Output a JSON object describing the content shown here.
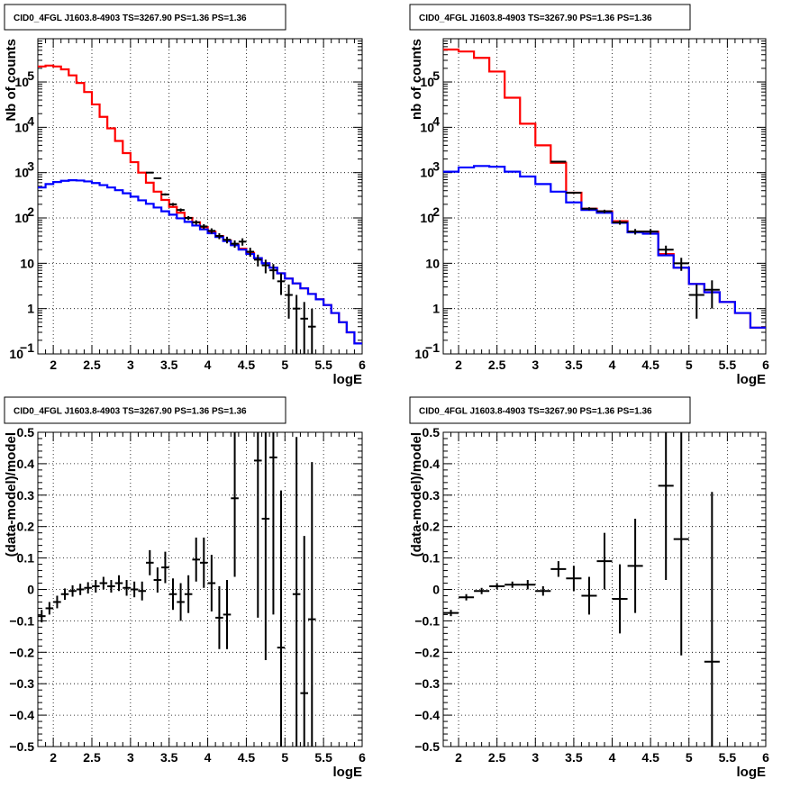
{
  "chart_data": [
    {
      "type": "line",
      "title": "CID0_4FGL J1603.8-4903 TS=3267.90 PS=1.36 PS=1.36",
      "xlabel": "logE",
      "ylabel": "Nb of counts",
      "xlim": [
        1.8,
        6.0
      ],
      "ylim": [
        0.1,
        900000
      ],
      "yscale": "log",
      "grid": true,
      "xticks": [
        "2",
        "2.5",
        "3",
        "3.5",
        "4",
        "4.5",
        "5",
        "5.5",
        "6"
      ],
      "yticks": [
        {
          "v": 0.1,
          "label": "10",
          "sup": "−1"
        },
        {
          "v": 1,
          "label": "1",
          "sup": ""
        },
        {
          "v": 10,
          "label": "10",
          "sup": ""
        },
        {
          "v": 100,
          "label": "10",
          "sup": "2"
        },
        {
          "v": 1000,
          "label": "10",
          "sup": "3"
        },
        {
          "v": 10000,
          "label": "10",
          "sup": "4"
        },
        {
          "v": 100000,
          "label": "10",
          "sup": "5"
        }
      ],
      "series": [
        {
          "color": "#ff0000",
          "kind": "hist",
          "binwidth": 0.1,
          "x": [
            1.8,
            1.9,
            2.0,
            2.1,
            2.2,
            2.3,
            2.4,
            2.5,
            2.6,
            2.7,
            2.8,
            2.9,
            3.0,
            3.1,
            3.2,
            3.3,
            3.4,
            3.5,
            3.6,
            3.7,
            3.8,
            3.9,
            4.0,
            4.1,
            4.2,
            4.3,
            4.4,
            4.5,
            4.6,
            4.7,
            4.8,
            4.9,
            5.0,
            5.1,
            5.2,
            5.3,
            5.4,
            5.5,
            5.6,
            5.7,
            5.8,
            5.9
          ],
          "y": [
            220000,
            230000,
            220000,
            190000,
            140000,
            95000,
            60000,
            32000,
            17000,
            9500,
            5000,
            2700,
            1700,
            1000,
            600,
            380,
            250,
            175,
            130,
            100,
            80,
            63,
            50,
            40,
            32,
            26,
            21,
            17,
            13,
            10,
            8,
            6,
            4.6,
            3.6,
            2.8,
            2.1,
            1.6,
            1.2,
            0.8,
            0.5,
            0.3,
            0.17
          ]
        },
        {
          "color": "#0000ff",
          "kind": "hist",
          "binwidth": 0.1,
          "x": [
            1.8,
            1.9,
            2.0,
            2.1,
            2.2,
            2.3,
            2.4,
            2.5,
            2.6,
            2.7,
            2.8,
            2.9,
            3.0,
            3.1,
            3.2,
            3.3,
            3.4,
            3.5,
            3.6,
            3.7,
            3.8,
            3.9,
            4.0,
            4.1,
            4.2,
            4.3,
            4.4,
            4.5,
            4.6,
            4.7,
            4.8,
            4.9,
            5.0,
            5.1,
            5.2,
            5.3,
            5.4,
            5.5,
            5.6,
            5.7,
            5.8,
            5.9
          ],
          "y": [
            470,
            560,
            620,
            660,
            680,
            670,
            640,
            590,
            530,
            470,
            410,
            350,
            295,
            245,
            205,
            170,
            140,
            118,
            98,
            82,
            68,
            56,
            46,
            38,
            31,
            25,
            20,
            16,
            13,
            10,
            8,
            6,
            4.6,
            3.6,
            2.8,
            2.1,
            1.6,
            1.2,
            0.8,
            0.5,
            0.3,
            0.17
          ]
        },
        {
          "color": "#000000",
          "kind": "points",
          "xerr": 0.05,
          "x": [
            3.25,
            3.35,
            3.45,
            3.55,
            3.65,
            3.75,
            3.85,
            3.95,
            4.05,
            4.15,
            4.25,
            4.35,
            4.45,
            4.55,
            4.65,
            4.75,
            4.85,
            4.95,
            5.05,
            5.15,
            5.25,
            5.35
          ],
          "y": [
            1000,
            750,
            330,
            200,
            150,
            100,
            80,
            65,
            52,
            40,
            33,
            27,
            30,
            18,
            12,
            9,
            7,
            4,
            2,
            1,
            0.6,
            0.4
          ],
          "yerr": [
            30,
            25,
            18,
            14,
            12,
            10,
            9,
            8,
            7,
            6,
            5.5,
            5,
            5.5,
            4,
            3.5,
            3,
            2.6,
            2,
            1.4,
            1,
            0.8,
            0.6
          ]
        }
      ]
    },
    {
      "type": "line",
      "title": "CID0_4FGL J1603.8-4903 TS=3267.90 PS=1.36 PS=1.36",
      "xlabel": "logE",
      "ylabel": "nb of counts",
      "xlim": [
        1.8,
        6.0
      ],
      "ylim": [
        0.1,
        900000
      ],
      "yscale": "log",
      "grid": true,
      "xticks": [
        "2",
        "2.5",
        "3",
        "3.5",
        "4",
        "4.5",
        "5",
        "5.5",
        "6"
      ],
      "yticks": [
        {
          "v": 0.1,
          "label": "10",
          "sup": "−1"
        },
        {
          "v": 1,
          "label": "1",
          "sup": ""
        },
        {
          "v": 10,
          "label": "10",
          "sup": ""
        },
        {
          "v": 100,
          "label": "10",
          "sup": "2"
        },
        {
          "v": 1000,
          "label": "10",
          "sup": "3"
        },
        {
          "v": 10000,
          "label": "10",
          "sup": "4"
        },
        {
          "v": 100000,
          "label": "10",
          "sup": "5"
        }
      ],
      "series": [
        {
          "color": "#ff0000",
          "kind": "hist",
          "binwidth": 0.2,
          "x": [
            1.8,
            2.0,
            2.2,
            2.4,
            2.6,
            2.8,
            3.0,
            3.2,
            3.4,
            3.6,
            3.8,
            4.0,
            4.2,
            4.4,
            4.6,
            4.8,
            5.0,
            5.2,
            5.4,
            5.6,
            5.8
          ],
          "y": [
            520000,
            470000,
            340000,
            170000,
            45000,
            12000,
            4000,
            1650,
            360,
            160,
            140,
            85,
            50,
            50,
            16,
            8,
            3.5,
            2.3,
            1.4,
            0.8,
            0.38
          ]
        },
        {
          "color": "#0000ff",
          "kind": "hist",
          "binwidth": 0.2,
          "x": [
            1.8,
            2.0,
            2.2,
            2.4,
            2.6,
            2.8,
            3.0,
            3.2,
            3.4,
            3.6,
            3.8,
            4.0,
            4.2,
            4.4,
            4.6,
            4.8,
            5.0,
            5.2,
            5.4,
            5.6,
            5.8
          ],
          "y": [
            1050,
            1300,
            1400,
            1350,
            1050,
            820,
            560,
            380,
            220,
            150,
            130,
            78,
            48,
            45,
            15,
            8,
            3.5,
            2.3,
            1.4,
            0.8,
            0.38
          ]
        },
        {
          "color": "#000000",
          "kind": "points",
          "xerr": 0.1,
          "x": [
            3.3,
            3.5,
            3.7,
            3.9,
            4.1,
            4.3,
            4.5,
            4.7,
            4.9,
            5.1,
            5.3
          ],
          "y": [
            1750,
            360,
            160,
            140,
            80,
            50,
            50,
            20,
            10,
            2,
            2.6
          ],
          "yerr": [
            40,
            18,
            12,
            12,
            9,
            7,
            7,
            4.5,
            3.2,
            1.4,
            1.6
          ]
        }
      ]
    },
    {
      "type": "scatter",
      "title": "CID0_4FGL J1603.8-4903 TS=3267.90 PS=1.36 PS=1.36",
      "xlabel": "logE",
      "ylabel": "(data-model)/model",
      "xlim": [
        1.8,
        6.0
      ],
      "ylim": [
        -0.5,
        0.5
      ],
      "grid": true,
      "xticks": [
        "2",
        "2.5",
        "3",
        "3.5",
        "4",
        "4.5",
        "5",
        "5.5",
        "6"
      ],
      "yticks": [
        "−0.5",
        "−0.4",
        "−0.3",
        "−0.2",
        "−0.1",
        "0",
        "0.1",
        "0.2",
        "0.3",
        "0.4",
        "0.5"
      ],
      "series": [
        {
          "color": "#000000",
          "kind": "points",
          "xerr": 0.05,
          "x": [
            1.85,
            1.95,
            2.05,
            2.15,
            2.25,
            2.35,
            2.45,
            2.55,
            2.65,
            2.75,
            2.85,
            2.95,
            3.05,
            3.15,
            3.25,
            3.35,
            3.45,
            3.55,
            3.65,
            3.75,
            3.85,
            3.95,
            4.05,
            4.15,
            4.25,
            4.35,
            4.65,
            4.75,
            4.85,
            4.95,
            5.15,
            5.25,
            5.35
          ],
          "y": [
            -0.085,
            -0.06,
            -0.04,
            -0.015,
            -0.005,
            0.0,
            0.005,
            0.01,
            0.02,
            0.01,
            0.02,
            0.005,
            0.0,
            -0.005,
            0.085,
            0.03,
            0.07,
            -0.015,
            -0.04,
            -0.015,
            0.095,
            0.085,
            0.02,
            -0.09,
            -0.08,
            0.29,
            0.41,
            0.225,
            0.42,
            -0.185,
            -0.015,
            -0.33,
            -0.095
          ],
          "yerr": [
            0.02,
            0.02,
            0.02,
            0.018,
            0.018,
            0.018,
            0.018,
            0.02,
            0.02,
            0.02,
            0.025,
            0.025,
            0.025,
            0.03,
            0.04,
            0.04,
            0.05,
            0.05,
            0.06,
            0.06,
            0.07,
            0.08,
            0.09,
            0.1,
            0.11,
            0.25,
            0.5,
            0.45,
            0.5,
            0.5,
            0.5,
            0.5,
            0.5
          ]
        }
      ]
    },
    {
      "type": "scatter",
      "title": "CID0_4FGL J1603.8-4903 TS=3267.90 PS=1.36 PS=1.36",
      "xlabel": "logE",
      "ylabel": "(data-model)/model",
      "xlim": [
        1.8,
        6.0
      ],
      "ylim": [
        -0.5,
        0.5
      ],
      "grid": true,
      "xticks": [
        "2",
        "2.5",
        "3",
        "3.5",
        "4",
        "4.5",
        "5",
        "5.5",
        "6"
      ],
      "yticks": [
        "−0.5",
        "−0.4",
        "−0.3",
        "−0.2",
        "−0.1",
        "0",
        "0.1",
        "0.2",
        "0.3",
        "0.4",
        "0.5"
      ],
      "series": [
        {
          "color": "#000000",
          "kind": "points",
          "xerr": 0.1,
          "x": [
            1.9,
            2.1,
            2.3,
            2.5,
            2.7,
            2.9,
            3.1,
            3.3,
            3.5,
            3.7,
            3.9,
            4.1,
            4.3,
            4.7,
            4.9,
            5.3
          ],
          "y": [
            -0.075,
            -0.025,
            -0.005,
            0.01,
            0.015,
            0.015,
            -0.005,
            0.065,
            0.035,
            -0.02,
            0.09,
            -0.03,
            0.075,
            0.33,
            0.16,
            -0.23
          ],
          "yerr": [
            0.01,
            0.01,
            0.01,
            0.01,
            0.01,
            0.015,
            0.015,
            0.025,
            0.04,
            0.06,
            0.09,
            0.11,
            0.15,
            0.3,
            0.37,
            0.54
          ]
        }
      ]
    }
  ]
}
